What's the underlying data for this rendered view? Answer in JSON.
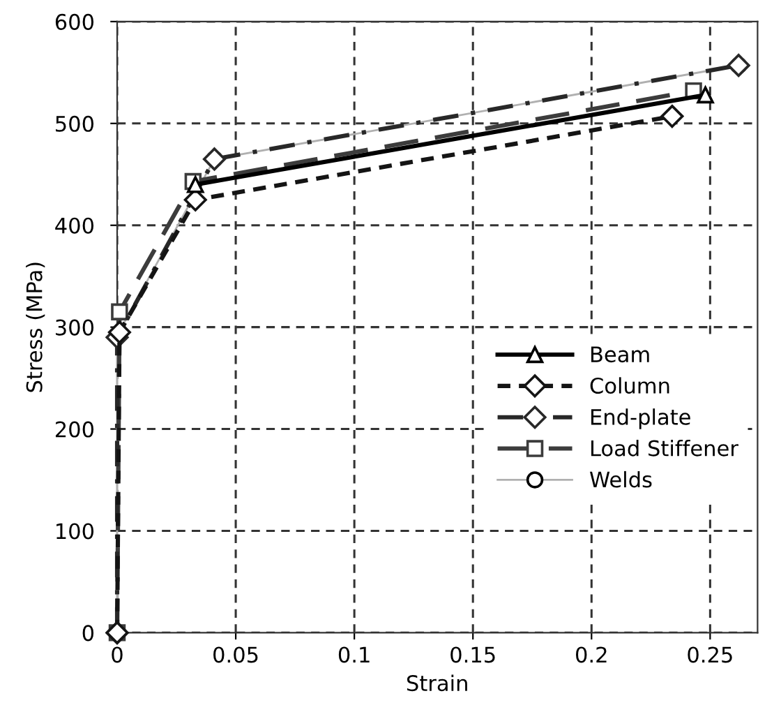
{
  "chart_data": {
    "type": "line",
    "xlabel": "Strain",
    "ylabel": "Stress (MPa)",
    "xlim": [
      0,
      0.27
    ],
    "xticks": [
      0,
      0.05,
      0.1,
      0.15,
      0.2,
      0.25
    ],
    "ylim": [
      0,
      600
    ],
    "yticks": [
      0,
      100,
      200,
      300,
      400,
      500,
      600
    ],
    "grid": true,
    "legend": "center right",
    "series": [
      {
        "name": "Beam",
        "color": "#000000",
        "marker": "triangle",
        "line_style": "solid",
        "x": [
          0.033,
          0.248
        ],
        "values": [
          440,
          528
        ]
      },
      {
        "name": "Column",
        "color": "#141414",
        "marker": "diamond",
        "line_style": "dashed",
        "x": [
          0,
          0.001,
          0.033,
          0.234
        ],
        "values": [
          0,
          295,
          425,
          507
        ]
      },
      {
        "name": "End-plate",
        "color": "#282828",
        "marker": "diamond",
        "line_style": "dashdot",
        "x": [
          0,
          0,
          0.041,
          0.262
        ],
        "values": [
          0,
          290,
          465,
          557
        ]
      },
      {
        "name": "Load Stiffener",
        "color": "#3c3c3c",
        "marker": "square",
        "line_style": "longdash",
        "x": [
          0,
          0.001,
          0.032,
          0.243
        ],
        "values": [
          0,
          315,
          443,
          532
        ]
      },
      {
        "name": "Welds",
        "color": "#b0b0b0",
        "marker": "circle",
        "line_style": "solid",
        "x": [
          0,
          0,
          0.041,
          0.262
        ],
        "values": [
          0,
          292,
          465,
          557
        ]
      }
    ]
  }
}
